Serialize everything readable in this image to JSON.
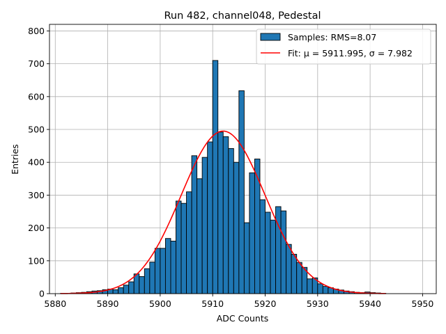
{
  "chart_data": {
    "type": "bar",
    "title": "Run 482, channel048, Pedestal",
    "xlabel": "ADC Counts",
    "ylabel": "Entries",
    "xlim": [
      5878.9,
      5952.6
    ],
    "ylim": [
      0,
      820
    ],
    "xticks": [
      5880,
      5890,
      5900,
      5910,
      5920,
      5930,
      5940,
      5950
    ],
    "yticks": [
      0,
      100,
      200,
      300,
      400,
      500,
      600,
      700,
      800
    ],
    "grid": true,
    "legend_position": "top-right",
    "bin_width": 1,
    "histogram": {
      "name": "Samples: RMS=8.07",
      "color": "#1f77b4",
      "edge_color": "#000000",
      "bins_left": [
        5881,
        5882,
        5883,
        5884,
        5885,
        5886,
        5887,
        5888,
        5889,
        5890,
        5891,
        5892,
        5893,
        5894,
        5895,
        5896,
        5897,
        5898,
        5899,
        5900,
        5901,
        5902,
        5903,
        5904,
        5905,
        5906,
        5907,
        5908,
        5909,
        5910,
        5911,
        5912,
        5913,
        5914,
        5915,
        5916,
        5917,
        5918,
        5919,
        5920,
        5921,
        5922,
        5923,
        5924,
        5925,
        5926,
        5927,
        5928,
        5929,
        5930,
        5931,
        5932,
        5933,
        5934,
        5935,
        5936,
        5937,
        5938,
        5939,
        5940,
        5941,
        5942
      ],
      "counts": [
        1,
        1,
        2,
        3,
        4,
        6,
        8,
        9,
        12,
        14,
        12,
        18,
        26,
        36,
        60,
        52,
        76,
        96,
        138,
        138,
        168,
        160,
        282,
        275,
        310,
        420,
        350,
        415,
        462,
        710,
        492,
        478,
        442,
        400,
        618,
        216,
        368,
        410,
        286,
        248,
        224,
        265,
        252,
        150,
        120,
        95,
        80,
        45,
        48,
        30,
        22,
        18,
        14,
        11,
        8,
        6,
        4,
        3,
        5,
        3,
        2,
        1
      ]
    },
    "fit": {
      "name": "Fit: μ = 5911.995, σ = 7.982",
      "color": "#ff0000",
      "mu": 5911.995,
      "sigma": 7.982,
      "amplitude": 495,
      "x_range": [
        5881,
        5943
      ]
    }
  }
}
